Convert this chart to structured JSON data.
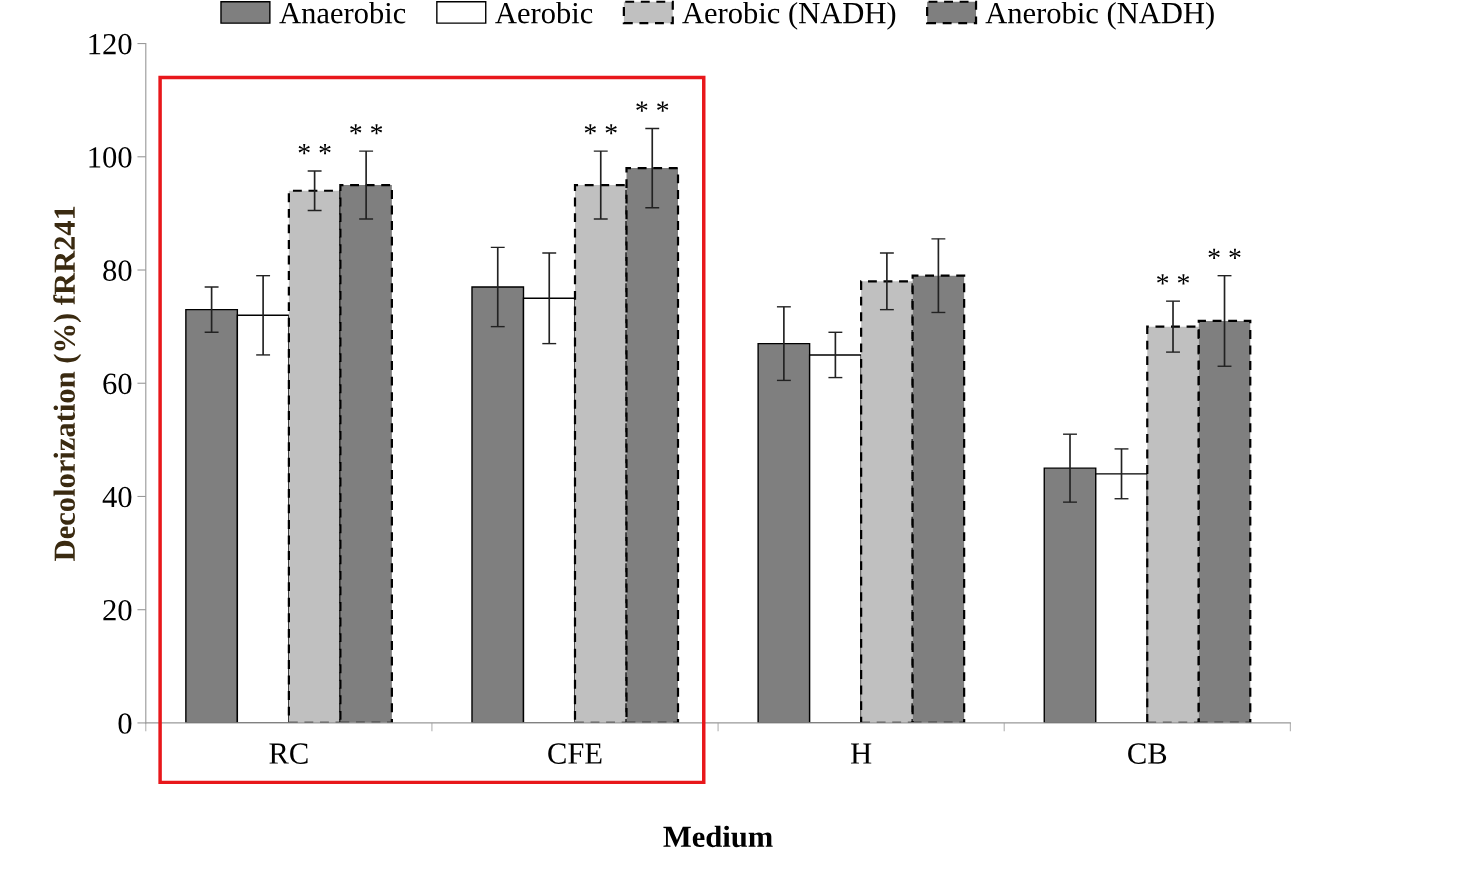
{
  "chart_data": {
    "type": "bar",
    "xlabel": "Medium",
    "ylabel": "Decolorization (%) fRR241",
    "categories": [
      "RC",
      "CFE",
      "H",
      "CB"
    ],
    "series": [
      {
        "name": "Anaerobic",
        "color": "#7f7f7f",
        "values": [
          73,
          77,
          67,
          45
        ],
        "errors": [
          4,
          7,
          6.5,
          6
        ]
      },
      {
        "name": "Aerobic",
        "color": "#ffffff",
        "values": [
          72,
          75,
          65,
          44
        ],
        "errors": [
          7,
          8,
          4,
          4.4
        ]
      },
      {
        "name": "Aerobic (NADH)",
        "color": "#c0c0c0",
        "line_style": "dashed",
        "values": [
          94,
          95,
          78,
          70
        ],
        "errors": [
          3.5,
          6,
          5,
          4.5
        ]
      },
      {
        "name": "Anerobic (NADH)",
        "color": "#7f7f7f",
        "line_style": "dashed",
        "values": [
          95,
          98,
          79,
          71
        ],
        "errors": [
          6,
          7,
          6.5,
          8
        ]
      }
    ],
    "ylim": [
      0,
      120
    ],
    "yticks": [
      0,
      20,
      40,
      60,
      80,
      100,
      120
    ],
    "grid": false,
    "legend": "top",
    "annotations": [
      "* *",
      "* *",
      "* *",
      "* *",
      "* *",
      "* *"
    ]
  }
}
